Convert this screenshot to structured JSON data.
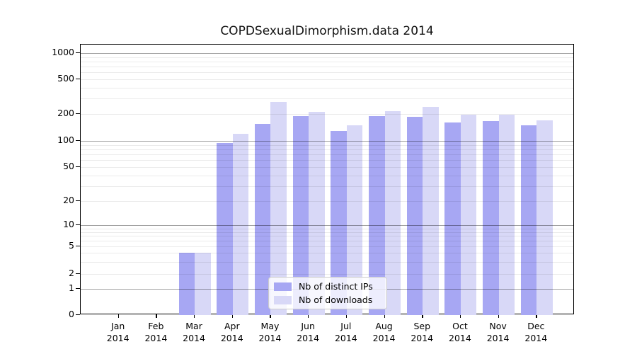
{
  "title": "COPDSexualDimorphism.data 2014",
  "legend": {
    "items": [
      {
        "label": "Nb of distinct IPs",
        "color": "#a7a7f3"
      },
      {
        "label": "Nb of downloads",
        "color": "#d8d8f7"
      }
    ]
  },
  "colors": {
    "distinct_ips": "#a7a7f3",
    "downloads": "#d8d8f7",
    "major_grid": "#9e9e9e",
    "minor_grid": "#ebebeb",
    "axis": "#000000"
  },
  "chart_data": {
    "type": "bar",
    "title": "COPDSexualDimorphism.data 2014",
    "categories": [
      "Jan 2014",
      "Feb 2014",
      "Mar 2014",
      "Apr 2014",
      "May 2014",
      "Jun 2014",
      "Jul 2014",
      "Aug 2014",
      "Sep 2014",
      "Oct 2014",
      "Nov 2014",
      "Dec 2014"
    ],
    "series": [
      {
        "name": "Nb of distinct IPs",
        "color": "#a7a7f3",
        "values": [
          0,
          0,
          4,
          95,
          154,
          188,
          130,
          189,
          187,
          162,
          168,
          150
        ]
      },
      {
        "name": "Nb of downloads",
        "color": "#d8d8f7",
        "values": [
          0,
          0,
          4,
          119,
          275,
          212,
          150,
          217,
          240,
          197,
          197,
          170
        ]
      }
    ],
    "xlabel": "",
    "ylabel": "",
    "yscale": "symlog",
    "yticks": [
      1000,
      500,
      200,
      100,
      50,
      20,
      10,
      5,
      2,
      1,
      0
    ],
    "ylim": [
      0,
      1400
    ],
    "grid": "on",
    "legend_position": "lower center inside"
  }
}
